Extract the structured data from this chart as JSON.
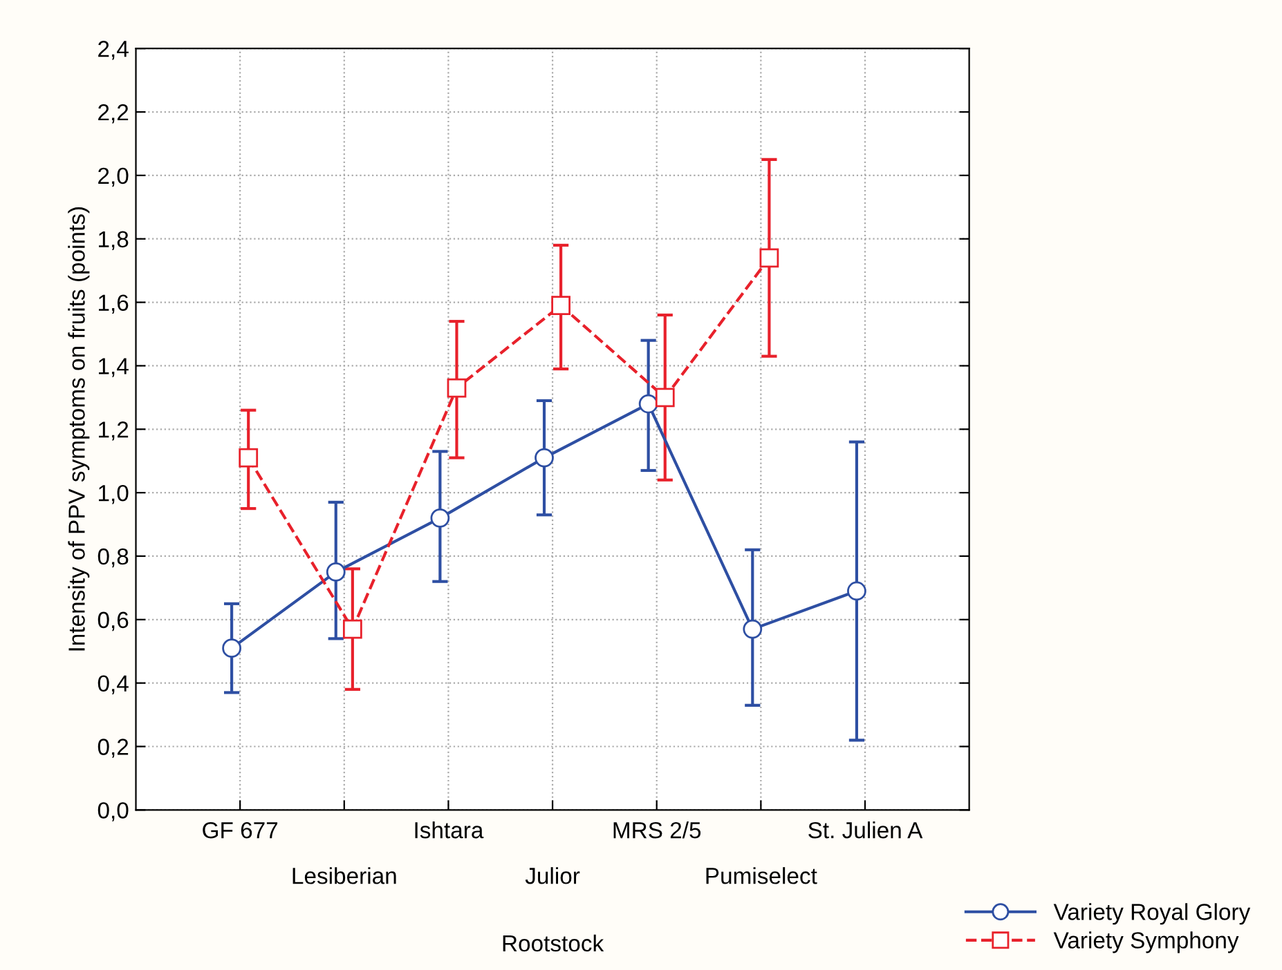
{
  "chart_data": {
    "type": "line",
    "xlabel": "Rootstock",
    "ylabel": "Intensity of PPV symptoms on fruits (points)",
    "categories": [
      "GF 677",
      "Lesiberian",
      "Ishtara",
      "Julior",
      "MRS 2/5",
      "Pumiselect",
      "St. Julien A"
    ],
    "series": [
      {
        "name": "Variety Royal Glory",
        "color": "#2e4fa3",
        "marker": "circle",
        "line_style": "solid",
        "values": [
          0.51,
          0.75,
          0.92,
          1.11,
          1.28,
          0.57,
          0.69
        ],
        "errors": [
          [
            0.37,
            0.65
          ],
          [
            0.54,
            0.97
          ],
          [
            0.72,
            1.13
          ],
          [
            0.93,
            1.29
          ],
          [
            1.07,
            1.48
          ],
          [
            0.33,
            0.82
          ],
          [
            0.22,
            1.16
          ]
        ]
      },
      {
        "name": "Variety Symphony",
        "color": "#e8212b",
        "marker": "square",
        "line_style": "dashed",
        "values": [
          1.11,
          0.57,
          1.33,
          1.59,
          1.3,
          1.74,
          null
        ],
        "errors": [
          [
            0.95,
            1.26
          ],
          [
            0.38,
            0.76
          ],
          [
            1.11,
            1.54
          ],
          [
            1.39,
            1.78
          ],
          [
            1.04,
            1.56
          ],
          [
            1.43,
            2.05
          ],
          null
        ]
      }
    ],
    "ylim": [
      0,
      2.4
    ],
    "yticks": [
      {
        "value": 0,
        "label": "0,0"
      },
      {
        "value": 0.2,
        "label": "0,2"
      },
      {
        "value": 0.4,
        "label": "0,4"
      },
      {
        "value": 0.6,
        "label": "0,6"
      },
      {
        "value": 0.8,
        "label": "0,8"
      },
      {
        "value": 1.0,
        "label": "1,0"
      },
      {
        "value": 1.2,
        "label": "1,2"
      },
      {
        "value": 1.4,
        "label": "1,4"
      },
      {
        "value": 1.6,
        "label": "1,6"
      },
      {
        "value": 1.8,
        "label": "1,8"
      },
      {
        "value": 2.0,
        "label": "2,0"
      },
      {
        "value": 2.2,
        "label": "2,2"
      },
      {
        "value": 2.4,
        "label": "2,4"
      }
    ],
    "grid": true,
    "legend": "bottom right"
  }
}
